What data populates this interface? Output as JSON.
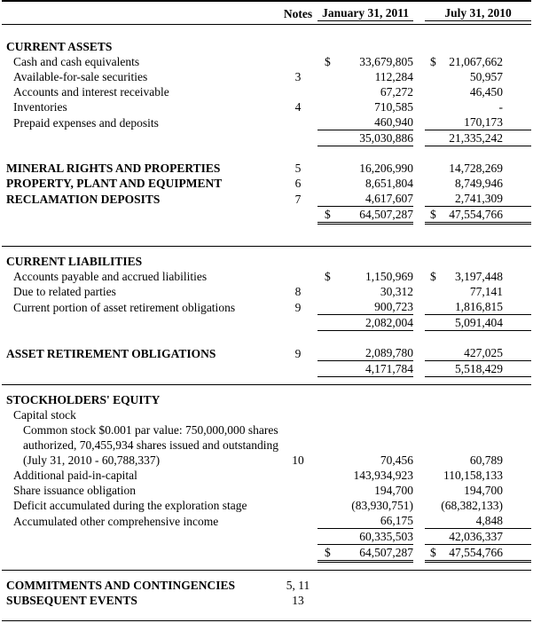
{
  "header": {
    "notes": "Notes",
    "col1": "January 31, 2011",
    "col2": "July 31, 2010"
  },
  "rows": [
    {
      "t": "blank"
    },
    {
      "label": "CURRENT ASSETS",
      "bold": true
    },
    {
      "label": "Cash and cash equivalents",
      "indent": 1,
      "d1": "$",
      "v1": "33,679,805",
      "d2": "$",
      "v2": "21,067,662"
    },
    {
      "label": "Available-for-sale securities",
      "indent": 1,
      "note": "3",
      "v1": "112,284",
      "v2": "50,957"
    },
    {
      "label": "Accounts and interest receivable",
      "indent": 1,
      "v1": "67,272",
      "v2": "46,450"
    },
    {
      "label": "Inventories",
      "indent": 1,
      "note": "4",
      "v1": "710,585",
      "v2": "-"
    },
    {
      "label": "Prepaid expenses and deposits",
      "indent": 1,
      "v1": "460,940",
      "v2": "170,173",
      "ul": "s"
    },
    {
      "v1": "35,030,886",
      "v2": "21,335,242",
      "ul": "s"
    },
    {
      "t": "blank"
    },
    {
      "label": "MINERAL RIGHTS AND PROPERTIES",
      "bold": true,
      "note": "5",
      "v1": "16,206,990",
      "v2": "14,728,269"
    },
    {
      "label": "PROPERTY, PLANT AND EQUIPMENT",
      "bold": true,
      "note": "6",
      "v1": "8,651,804",
      "v2": "8,749,946"
    },
    {
      "label": "RECLAMATION DEPOSITS",
      "bold": true,
      "note": "7",
      "v1": "4,617,607",
      "v2": "2,741,309",
      "ul": "s"
    },
    {
      "d1": "$",
      "v1": "64,507,287",
      "d2": "$",
      "v2": "47,554,766",
      "ul": "d"
    },
    {
      "t": "blank"
    },
    {
      "t": "hr"
    },
    {
      "label": "CURRENT LIABILITIES",
      "bold": true
    },
    {
      "label": "Accounts payable and accrued liabilities",
      "indent": 1,
      "d1": "$",
      "v1": "1,150,969",
      "d2": "$",
      "v2": "3,197,448"
    },
    {
      "label": "Due to related parties",
      "indent": 1,
      "note": "8",
      "v1": "30,312",
      "v2": "77,141"
    },
    {
      "label": "Current portion of asset retirement obligations",
      "indent": 1,
      "note": "9",
      "v1": "900,723",
      "v2": "1,816,815",
      "ul": "s"
    },
    {
      "v1": "2,082,004",
      "v2": "5,091,404",
      "ul": "s"
    },
    {
      "t": "blank"
    },
    {
      "label": "ASSET RETIREMENT OBLIGATIONS",
      "bold": true,
      "note": "9",
      "v1": "2,089,780",
      "v2": "427,025",
      "ul": "s"
    },
    {
      "v1": "4,171,784",
      "v2": "5,518,429",
      "ul": "s"
    },
    {
      "t": "hr"
    },
    {
      "label": "STOCKHOLDERS' EQUITY",
      "bold": true
    },
    {
      "label": "Capital stock",
      "indent": 1
    },
    {
      "label": "Common stock $0.001 par value: 750,000,000 shares",
      "indent": 2
    },
    {
      "label": "authorized, 70,455,934 shares issued and outstanding",
      "indent": 2
    },
    {
      "label": "(July 31, 2010 - 60,788,337)",
      "indent": 2,
      "note": "10",
      "v1": "70,456",
      "v2": "60,789"
    },
    {
      "label": "Additional paid-in-capital",
      "indent": 1,
      "v1": "143,934,923",
      "v2": "110,158,133"
    },
    {
      "label": "Share issuance obligation",
      "indent": 1,
      "v1": "194,700",
      "v2": "194,700"
    },
    {
      "label": "Deficit accumulated during the exploration stage",
      "indent": 1,
      "v1": "(83,930,751)",
      "v2": "(68,382,133)"
    },
    {
      "label": "Accumulated other comprehensive income",
      "indent": 1,
      "v1": "66,175",
      "v2": "4,848",
      "ul": "s"
    },
    {
      "v1": "60,335,503",
      "v2": "42,036,337",
      "ul": "s"
    },
    {
      "d1": "$",
      "v1": "64,507,287",
      "d2": "$",
      "v2": "47,554,766",
      "ul": "d"
    },
    {
      "t": "hr"
    },
    {
      "label": "COMMITMENTS AND CONTINGENCIES",
      "bold": true,
      "note": "5, 11"
    },
    {
      "label": "SUBSEQUENT EVENTS",
      "bold": true,
      "note": "13"
    },
    {
      "t": "hr-end"
    }
  ]
}
